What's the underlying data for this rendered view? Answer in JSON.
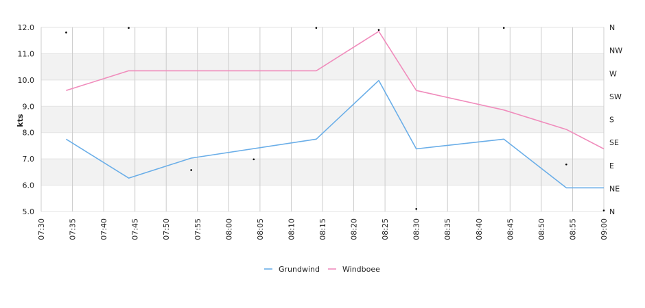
{
  "chart_data": {
    "type": "line",
    "ylabel": "kts",
    "ylim": [
      5.0,
      12.0
    ],
    "y_ticks": [
      "5.0",
      "6.0",
      "7.0",
      "8.0",
      "9.0",
      "10.0",
      "11.0",
      "12.0"
    ],
    "x_range": [
      "07:30",
      "09:00"
    ],
    "x_ticks": [
      "07:30",
      "07:35",
      "07:40",
      "07:45",
      "07:50",
      "07:55",
      "08:00",
      "08:05",
      "08:10",
      "08:15",
      "08:20",
      "08:25",
      "08:30",
      "08:35",
      "08:40",
      "08:45",
      "08:50",
      "08:55",
      "09:00"
    ],
    "right_axis_labels": [
      "N",
      "NE",
      "E",
      "SE",
      "S",
      "SW",
      "W",
      "NW",
      "N"
    ],
    "grid": true,
    "band_color": "#f2f2f2",
    "legend_position": "bottom-center",
    "series": [
      {
        "name": "Grundwind",
        "color": "#6aaee8",
        "points": [
          {
            "x": "07:34",
            "y": 7.75
          },
          {
            "x": "07:44",
            "y": 6.27
          },
          {
            "x": "07:54",
            "y": 7.03
          },
          {
            "x": "08:14",
            "y": 7.75
          },
          {
            "x": "08:24",
            "y": 9.98
          },
          {
            "x": "08:30",
            "y": 7.38
          },
          {
            "x": "08:44",
            "y": 7.75
          },
          {
            "x": "08:54",
            "y": 5.9
          },
          {
            "x": "09:00",
            "y": 5.9
          }
        ]
      },
      {
        "name": "Windboee",
        "color": "#f08cbc",
        "points": [
          {
            "x": "07:34",
            "y": 9.6
          },
          {
            "x": "07:44",
            "y": 10.35
          },
          {
            "x": "08:14",
            "y": 10.35
          },
          {
            "x": "08:24",
            "y": 11.85
          },
          {
            "x": "08:30",
            "y": 9.6
          },
          {
            "x": "08:44",
            "y": 8.86
          },
          {
            "x": "08:54",
            "y": 8.12
          },
          {
            "x": "09:00",
            "y": 7.38
          }
        ]
      }
    ],
    "direction_points": [
      {
        "x": "07:34",
        "direction": 350
      },
      {
        "x": "07:44",
        "direction": 359
      },
      {
        "x": "07:54",
        "direction": 81
      },
      {
        "x": "08:04",
        "direction": 102
      },
      {
        "x": "08:14",
        "direction": 359
      },
      {
        "x": "08:24",
        "direction": 355
      },
      {
        "x": "08:30",
        "direction": 5
      },
      {
        "x": "08:44",
        "direction": 359
      },
      {
        "x": "08:54",
        "direction": 92
      },
      {
        "x": "09:00",
        "direction": 2
      }
    ]
  }
}
